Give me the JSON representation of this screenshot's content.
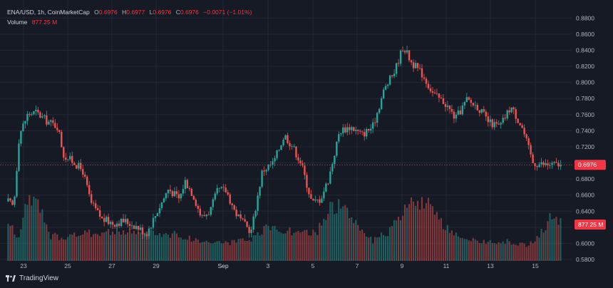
{
  "legend": {
    "symbol": "ENA/USD, 1h, CoinMarketCap",
    "open_label": "O",
    "open": "0.6976",
    "high_label": "H",
    "high": "0.6977",
    "low_label": "L",
    "low": "0.6976",
    "close_label": "C",
    "close": "0.6976",
    "change": "−0.0071 (−1.01%)",
    "volume_label": "Volume",
    "volume": "877.25 M"
  },
  "branding": {
    "text": "TradingView"
  },
  "colors": {
    "background": "#161a25",
    "grid": "#232837",
    "up": "#26a69a",
    "down": "#ef5350",
    "text": "#b2b5be",
    "badge": "#f23645"
  },
  "chart_data": {
    "type": "candlestick",
    "interval": "1h",
    "price_axis": {
      "ticks": [
        "0.8800",
        "0.8600",
        "0.8400",
        "0.8200",
        "0.8000",
        "0.7800",
        "0.7600",
        "0.7400",
        "0.7200",
        "0.7000",
        "0.6800",
        "0.6600",
        "0.6400",
        "0.6200",
        "0.6000",
        "0.5800"
      ],
      "range": [
        0.58,
        0.89
      ]
    },
    "time_axis": {
      "ticks": [
        "23",
        "25",
        "27",
        "29",
        "Sep",
        "3",
        "5",
        "7",
        "9",
        "11",
        "13",
        "15"
      ]
    },
    "last_price": "0.6976",
    "last_volume": "877.25 M",
    "price_path": [
      [
        0,
        0.652
      ],
      [
        0.01,
        0.645
      ],
      [
        0.02,
        0.735
      ],
      [
        0.035,
        0.76
      ],
      [
        0.05,
        0.763
      ],
      [
        0.07,
        0.752
      ],
      [
        0.09,
        0.745
      ],
      [
        0.1,
        0.71
      ],
      [
        0.12,
        0.7
      ],
      [
        0.135,
        0.69
      ],
      [
        0.15,
        0.65
      ],
      [
        0.17,
        0.63
      ],
      [
        0.19,
        0.625
      ],
      [
        0.21,
        0.628
      ],
      [
        0.23,
        0.622
      ],
      [
        0.25,
        0.612
      ],
      [
        0.27,
        0.64
      ],
      [
        0.29,
        0.668
      ],
      [
        0.31,
        0.655
      ],
      [
        0.32,
        0.678
      ],
      [
        0.335,
        0.66
      ],
      [
        0.35,
        0.632
      ],
      [
        0.365,
        0.64
      ],
      [
        0.38,
        0.667
      ],
      [
        0.395,
        0.665
      ],
      [
        0.41,
        0.64
      ],
      [
        0.425,
        0.625
      ],
      [
        0.44,
        0.615
      ],
      [
        0.46,
        0.69
      ],
      [
        0.48,
        0.7
      ],
      [
        0.5,
        0.735
      ],
      [
        0.515,
        0.72
      ],
      [
        0.53,
        0.7
      ],
      [
        0.55,
        0.65
      ],
      [
        0.565,
        0.655
      ],
      [
        0.58,
        0.68
      ],
      [
        0.6,
        0.74
      ],
      [
        0.62,
        0.745
      ],
      [
        0.64,
        0.735
      ],
      [
        0.66,
        0.745
      ],
      [
        0.68,
        0.79
      ],
      [
        0.7,
        0.815
      ],
      [
        0.715,
        0.845
      ],
      [
        0.73,
        0.825
      ],
      [
        0.75,
        0.81
      ],
      [
        0.77,
        0.785
      ],
      [
        0.79,
        0.775
      ],
      [
        0.81,
        0.755
      ],
      [
        0.83,
        0.778
      ],
      [
        0.85,
        0.77
      ],
      [
        0.87,
        0.75
      ],
      [
        0.89,
        0.745
      ],
      [
        0.91,
        0.77
      ],
      [
        0.93,
        0.745
      ],
      [
        0.95,
        0.7
      ],
      [
        0.97,
        0.698
      ],
      [
        1.0,
        0.6976
      ]
    ],
    "volume_profile": [
      [
        0,
        0.55
      ],
      [
        0.02,
        0.3
      ],
      [
        0.03,
        0.85
      ],
      [
        0.045,
        0.88
      ],
      [
        0.06,
        0.7
      ],
      [
        0.075,
        0.35
      ],
      [
        0.1,
        0.35
      ],
      [
        0.15,
        0.4
      ],
      [
        0.2,
        0.42
      ],
      [
        0.25,
        0.4
      ],
      [
        0.3,
        0.38
      ],
      [
        0.35,
        0.28
      ],
      [
        0.4,
        0.26
      ],
      [
        0.44,
        0.3
      ],
      [
        0.47,
        0.48
      ],
      [
        0.5,
        0.45
      ],
      [
        0.53,
        0.38
      ],
      [
        0.56,
        0.42
      ],
      [
        0.58,
        0.75
      ],
      [
        0.6,
        0.8
      ],
      [
        0.63,
        0.55
      ],
      [
        0.66,
        0.28
      ],
      [
        0.69,
        0.42
      ],
      [
        0.72,
        0.75
      ],
      [
        0.74,
        0.88
      ],
      [
        0.76,
        0.8
      ],
      [
        0.79,
        0.48
      ],
      [
        0.82,
        0.3
      ],
      [
        0.86,
        0.28
      ],
      [
        0.9,
        0.28
      ],
      [
        0.94,
        0.22
      ],
      [
        0.965,
        0.4
      ],
      [
        0.98,
        0.6
      ],
      [
        1.0,
        0.58
      ]
    ]
  }
}
